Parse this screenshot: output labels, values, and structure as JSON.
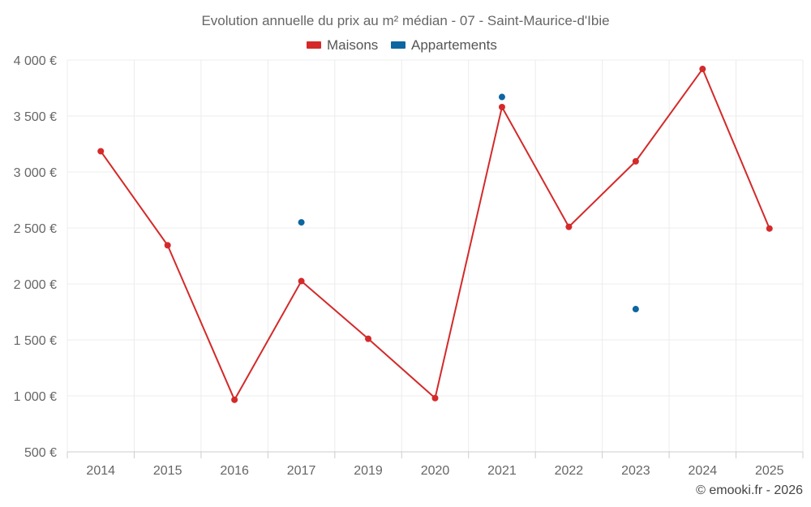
{
  "chart_data": {
    "type": "line",
    "title": "Evolution annuelle du prix au m² médian - 07 - Saint-Maurice-d'Ibie",
    "categories": [
      "2014",
      "2015",
      "2016",
      "2017",
      "2019",
      "2020",
      "2021",
      "2022",
      "2023",
      "2024",
      "2025"
    ],
    "ylim": [
      500,
      4000
    ],
    "yticks": [
      500,
      1000,
      1500,
      2000,
      2500,
      3000,
      3500,
      4000
    ],
    "ytick_labels": [
      "500 €",
      "1 000 €",
      "1 500 €",
      "2 000 €",
      "2 500 €",
      "3 000 €",
      "3 500 €",
      "4 000 €"
    ],
    "grid": true,
    "legend_position": "top-center",
    "series": [
      {
        "name": "Maisons",
        "color": "#d42a2a",
        "style": "line+markers",
        "values": [
          3185,
          2345,
          965,
          2025,
          1510,
          980,
          3580,
          2510,
          3095,
          3920,
          2495
        ]
      },
      {
        "name": "Appartements",
        "color": "#0d66a0",
        "style": "markers",
        "values": [
          null,
          null,
          null,
          2550,
          null,
          null,
          3670,
          null,
          1775,
          null,
          null
        ]
      }
    ],
    "credit": "© emooki.fr - 2026"
  }
}
